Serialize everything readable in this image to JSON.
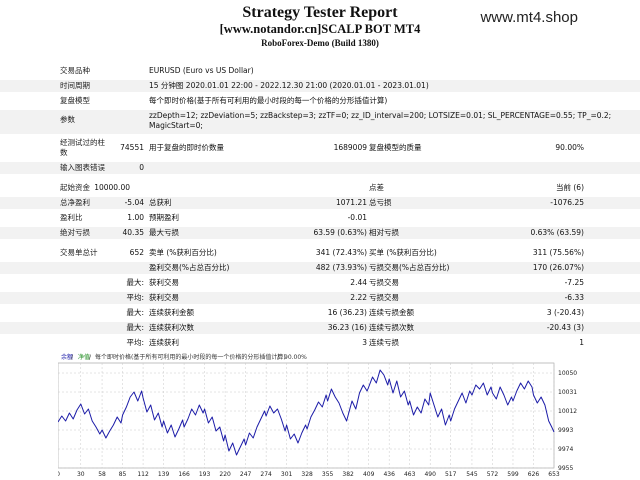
{
  "header": {
    "title": "Strategy Tester Report",
    "subtitle": "[www.notandor.cn]SCALP BOT MT4",
    "server": "RoboForex-Demo (Build 1380)",
    "watermark": "www.mt4.shop"
  },
  "info": {
    "symbol_label": "交易品种",
    "symbol_value": "EURUSD (Euro vs US Dollar)",
    "period_label": "时间周期",
    "period_value": "15 分钟图 2020.01.01 22:00 - 2022.12.30 21:00 (2020.01.01 - 2023.01.01)",
    "model_label": "复盘模型",
    "model_value": "每个即时价格(基于所有可利用的最小时段的每一个价格的分形插值计算)",
    "params_label": "参数",
    "params_value_1": "zzDepth=12; zzDeviation=5; zzBackstep=3; zzTF=0; zz_ID_interval=200; LOTSIZE=0.01; SL_PERCENTAGE=0.55; TP_=0.2;",
    "params_value_2": "MagicStart=0;"
  },
  "stats": {
    "bars_label_1": "经测试过的柱",
    "bars_label_2": "数",
    "bars_value": "74551",
    "ticks_label": "用于复盘的即时价数量",
    "ticks_value": "1689009",
    "quality_label": "复盘模型的质量",
    "quality_value": "90.00%",
    "mismatch_label": "输入图表错误",
    "mismatch_value": "0",
    "deposit_label": "起始资金",
    "deposit_value": "10000.00",
    "spread_label": "点差",
    "spread_value": "当前 (6)",
    "net_label": "总净盈利",
    "net_value": "-5.04",
    "gross_profit_label": "总获利",
    "gross_profit_value": "1071.21",
    "gross_loss_label": "总亏损",
    "gross_loss_value": "-1076.25",
    "pf_label": "盈利比",
    "pf_value": "1.00",
    "payoff_label": "预期盈利",
    "payoff_value": "-0.01",
    "abs_dd_label": "绝对亏损",
    "abs_dd_value": "40.35",
    "max_dd_label": "最大亏损",
    "max_dd_value": "63.59 (0.63%)",
    "rel_dd_label": "相对亏损",
    "rel_dd_value": "0.63% (63.59)",
    "total_trades_label": "交易单总计",
    "total_trades_value": "652",
    "short_label": "卖单 (%获利百分比)",
    "short_value": "341 (72.43%)",
    "long_label": "买单 (%获利百分比)",
    "long_value": "311 (75.56%)",
    "profit_trades_label": "盈利交易(%占总百分比)",
    "profit_trades_value": "482 (73.93%)",
    "loss_trades_label": "亏损交易(%占总百分比)",
    "loss_trades_value": "170 (26.07%)",
    "largest_label": "最大:",
    "largest_profit_label": "获利交易",
    "largest_profit_value": "2.44",
    "largest_loss_label": "亏损交易",
    "largest_loss_value": "-7.25",
    "average_label": "平均:",
    "avg_profit_label": "获利交易",
    "avg_profit_value": "2.22",
    "avg_loss_label": "亏损交易",
    "avg_loss_value": "-6.33",
    "max_label_1": "最大:",
    "cons_wins_label": "连续获利金额",
    "cons_wins_value": "16 (36.23)",
    "cons_losses_label": "连续亏损金额",
    "cons_losses_value": "3 (-20.43)",
    "max_label_2": "最大:",
    "cons_profit_label": "连续获利次数",
    "cons_profit_value": "36.23 (16)",
    "cons_loss_label": "连续亏损次数",
    "cons_loss_value": "-20.43 (3)",
    "avg_label_2": "平均:",
    "avg_cons_wins_label": "连续获利",
    "avg_cons_wins_value": "3",
    "avg_cons_losses_label": "连续亏损",
    "avg_cons_losses_value": "1"
  },
  "chart_legend": {
    "balance": "余额",
    "equity": "净值",
    "items": "每个即时价格(基于所有可利用的最小时段的每一个价格的分形插值计算)",
    "quality": "90.00%"
  },
  "colors": {
    "line": "#1c1ca8",
    "grid": "#c8c8c8",
    "legend_balance": "#1c1ca8",
    "legend_equity": "#1a8a1a"
  },
  "chart_data": {
    "type": "line",
    "title": "",
    "xlabel": "",
    "ylabel": "",
    "xlim": [
      0,
      653
    ],
    "ylim": [
      9955,
      10060
    ],
    "x_ticks": [
      0,
      30,
      58,
      85,
      112,
      139,
      166,
      193,
      220,
      247,
      274,
      301,
      328,
      355,
      382,
      409,
      436,
      463,
      490,
      517,
      545,
      572,
      599,
      626,
      653
    ],
    "y_ticks": [
      10050,
      10031,
      10012,
      9993,
      9974,
      9955
    ],
    "series": [
      {
        "values": [
          [
            0,
            10001
          ],
          [
            5,
            10007
          ],
          [
            10,
            10002
          ],
          [
            15,
            10010
          ],
          [
            20,
            10004
          ],
          [
            25,
            10013
          ],
          [
            30,
            10019
          ],
          [
            35,
            10009
          ],
          [
            40,
            10014
          ],
          [
            45,
            10002
          ],
          [
            50,
            9996
          ],
          [
            55,
            9989
          ],
          [
            58,
            9993
          ],
          [
            63,
            9985
          ],
          [
            68,
            9992
          ],
          [
            73,
            9998
          ],
          [
            78,
            10006
          ],
          [
            83,
            10000
          ],
          [
            85,
            10008
          ],
          [
            90,
            10016
          ],
          [
            95,
            10026
          ],
          [
            100,
            10031
          ],
          [
            105,
            10022
          ],
          [
            110,
            10032
          ],
          [
            112,
            10025
          ],
          [
            117,
            10011
          ],
          [
            122,
            10018
          ],
          [
            127,
            10003
          ],
          [
            132,
            10010
          ],
          [
            137,
            9996
          ],
          [
            139,
            10002
          ],
          [
            144,
            9990
          ],
          [
            149,
            9998
          ],
          [
            154,
            9986
          ],
          [
            159,
            9994
          ],
          [
            164,
            10003
          ],
          [
            166,
            9996
          ],
          [
            171,
            10004
          ],
          [
            176,
            10014
          ],
          [
            181,
            10008
          ],
          [
            186,
            10018
          ],
          [
            191,
            10010
          ],
          [
            193,
            10014
          ],
          [
            198,
            10000
          ],
          [
            203,
            10006
          ],
          [
            208,
            9992
          ],
          [
            213,
            9996
          ],
          [
            218,
            9982
          ],
          [
            220,
            9988
          ],
          [
            225,
            9972
          ],
          [
            230,
            9980
          ],
          [
            235,
            9968
          ],
          [
            240,
            9976
          ],
          [
            245,
            9984
          ],
          [
            247,
            9978
          ],
          [
            252,
            9990
          ],
          [
            257,
            9985
          ],
          [
            262,
            9996
          ],
          [
            267,
            10004
          ],
          [
            272,
            10012
          ],
          [
            274,
            10007
          ],
          [
            279,
            10017
          ],
          [
            284,
            10010
          ],
          [
            289,
            10014
          ],
          [
            294,
            10004
          ],
          [
            299,
            9992
          ],
          [
            301,
            9998
          ],
          [
            306,
            9984
          ],
          [
            311,
            9989
          ],
          [
            316,
            9980
          ],
          [
            321,
            9990
          ],
          [
            326,
            9998
          ],
          [
            328,
            9994
          ],
          [
            333,
            10006
          ],
          [
            338,
            10013
          ],
          [
            343,
            10021
          ],
          [
            348,
            10016
          ],
          [
            353,
            10028
          ],
          [
            355,
            10022
          ],
          [
            360,
            10034
          ],
          [
            365,
            10026
          ],
          [
            370,
            10020
          ],
          [
            375,
            10010
          ],
          [
            380,
            10002
          ],
          [
            382,
            10008
          ],
          [
            387,
            10022
          ],
          [
            392,
            10014
          ],
          [
            397,
            10030
          ],
          [
            402,
            10038
          ],
          [
            407,
            10032
          ],
          [
            409,
            10036
          ],
          [
            414,
            10046
          ],
          [
            419,
            10040
          ],
          [
            424,
            10053
          ],
          [
            429,
            10048
          ],
          [
            434,
            10038
          ],
          [
            436,
            10044
          ],
          [
            441,
            10030
          ],
          [
            446,
            10042
          ],
          [
            451,
            10026
          ],
          [
            456,
            10032
          ],
          [
            461,
            10018
          ],
          [
            463,
            10022
          ],
          [
            468,
            10008
          ],
          [
            473,
            10016
          ],
          [
            478,
            10010
          ],
          [
            483,
            10024
          ],
          [
            488,
            10018
          ],
          [
            490,
            10030
          ],
          [
            495,
            10018
          ],
          [
            500,
            10006
          ],
          [
            505,
            10014
          ],
          [
            510,
            9998
          ],
          [
            515,
            10008
          ],
          [
            517,
            10002
          ],
          [
            522,
            10014
          ],
          [
            527,
            10022
          ],
          [
            532,
            10030
          ],
          [
            537,
            10020
          ],
          [
            542,
            10032
          ],
          [
            545,
            10028
          ],
          [
            550,
            10038
          ],
          [
            555,
            10034
          ],
          [
            560,
            10040
          ],
          [
            565,
            10028
          ],
          [
            570,
            10036
          ],
          [
            572,
            10030
          ],
          [
            577,
            10024
          ],
          [
            582,
            10036
          ],
          [
            587,
            10028
          ],
          [
            592,
            10018
          ],
          [
            597,
            10026
          ],
          [
            599,
            10022
          ],
          [
            604,
            10032
          ],
          [
            609,
            10040
          ],
          [
            614,
            10034
          ],
          [
            619,
            10042
          ],
          [
            624,
            10036
          ],
          [
            626,
            10028
          ],
          [
            631,
            10020
          ],
          [
            636,
            10026
          ],
          [
            641,
            10018
          ],
          [
            646,
            10002
          ],
          [
            650,
            9996
          ],
          [
            653,
            9991
          ]
        ]
      }
    ],
    "grid": true,
    "legend": "top-left"
  }
}
